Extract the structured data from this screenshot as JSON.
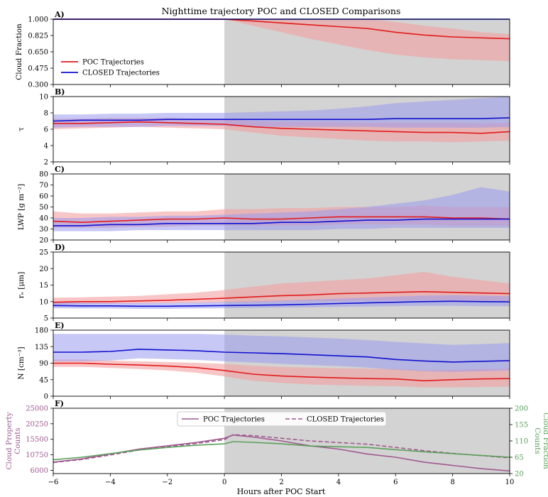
{
  "figure": {
    "title": "Nighttime trajectory POC and CLOSED Comparisons",
    "xlabel": "Hours after POC Start"
  },
  "colors": {
    "poc": "#e31a1c",
    "poc_band": "#f4a0a0",
    "closed": "#1010d0",
    "closed_band": "#9b9bee",
    "shade": "#d3d3d3",
    "prop_counts": "#a05a90",
    "frac_counts": "#5aa05a"
  },
  "legend_top": [
    "POC Trajectories",
    "CLOSED Trajectories"
  ],
  "legend_bottom": [
    "POC Trajectories",
    "CLOSED Trajectories"
  ],
  "chart_data": [
    {
      "type": "line",
      "panel": "A)",
      "ylabel": "Cloud Fraction",
      "ylim": [
        0.3,
        1.0
      ],
      "yticks": [
        "0.300",
        "0.475",
        "0.650",
        "0.825",
        "1.000"
      ],
      "shade_from_x": 0,
      "xlim": [
        -6,
        10
      ],
      "x": [
        -6,
        -5,
        -4,
        -3,
        -2,
        -1,
        0,
        1,
        2,
        3,
        4,
        5,
        6,
        7,
        8,
        9,
        10
      ],
      "series": [
        {
          "name": "POC Trajectories",
          "values": [
            1.0,
            1.0,
            1.0,
            1.0,
            1.0,
            1.0,
            1.0,
            0.98,
            0.96,
            0.94,
            0.92,
            0.9,
            0.86,
            0.83,
            0.81,
            0.8,
            0.79
          ],
          "lower": [
            1.0,
            1.0,
            1.0,
            1.0,
            1.0,
            1.0,
            1.0,
            0.93,
            0.86,
            0.79,
            0.73,
            0.67,
            0.62,
            0.59,
            0.57,
            0.56,
            0.55
          ],
          "upper": [
            1.0,
            1.0,
            1.0,
            1.0,
            1.0,
            1.0,
            1.0,
            1.0,
            1.0,
            1.0,
            1.0,
            1.0,
            0.97,
            0.93,
            0.9,
            0.86,
            0.84
          ]
        },
        {
          "name": "CLOSED Trajectories",
          "values": [
            1.0,
            1.0,
            1.0,
            1.0,
            1.0,
            1.0,
            1.0,
            1.0,
            1.0,
            1.0,
            1.0,
            1.0,
            1.0,
            1.0,
            1.0,
            1.0,
            1.0
          ],
          "lower": [
            0.99,
            0.99,
            0.99,
            0.99,
            0.99,
            0.99,
            0.99,
            0.99,
            0.99,
            0.99,
            0.99,
            0.99,
            0.99,
            0.99,
            0.99,
            0.99,
            0.99
          ],
          "upper": [
            1.0,
            1.0,
            1.0,
            1.0,
            1.0,
            1.0,
            1.0,
            1.0,
            1.0,
            1.0,
            1.0,
            1.0,
            1.0,
            1.0,
            1.0,
            1.0,
            1.0
          ]
        }
      ]
    },
    {
      "type": "line",
      "panel": "B)",
      "ylabel": "τ",
      "ylim": [
        2,
        10
      ],
      "yticks": [
        "2",
        "4",
        "6",
        "8",
        "10"
      ],
      "shade_from_x": 0,
      "xlim": [
        -6,
        10
      ],
      "x": [
        -6,
        -5,
        -4,
        -3,
        -2,
        -1,
        0,
        1,
        2,
        3,
        4,
        5,
        6,
        7,
        8,
        9,
        10
      ],
      "series": [
        {
          "name": "POC Trajectories",
          "values": [
            6.7,
            6.7,
            6.8,
            6.9,
            6.8,
            6.7,
            6.6,
            6.3,
            6.1,
            6.0,
            5.9,
            5.8,
            5.7,
            5.6,
            5.6,
            5.5,
            5.7
          ],
          "lower": [
            6.0,
            6.1,
            6.2,
            6.3,
            6.2,
            6.1,
            6.0,
            5.6,
            5.2,
            5.0,
            4.8,
            4.6,
            4.5,
            4.5,
            4.4,
            4.5,
            4.6
          ],
          "upper": [
            7.3,
            7.3,
            7.4,
            7.4,
            7.4,
            7.3,
            7.3,
            7.0,
            6.9,
            6.9,
            6.9,
            6.8,
            6.8,
            6.8,
            6.8,
            6.7,
            6.8
          ]
        },
        {
          "name": "CLOSED Trajectories",
          "values": [
            7.0,
            7.1,
            7.1,
            7.1,
            7.2,
            7.2,
            7.2,
            7.2,
            7.2,
            7.2,
            7.2,
            7.2,
            7.3,
            7.3,
            7.3,
            7.3,
            7.4
          ],
          "lower": [
            6.2,
            6.3,
            6.3,
            6.3,
            6.4,
            6.4,
            6.4,
            6.3,
            6.3,
            6.3,
            6.3,
            6.3,
            6.2,
            6.2,
            6.2,
            6.2,
            6.3
          ],
          "upper": [
            7.8,
            7.8,
            7.9,
            7.9,
            8.0,
            8.0,
            8.0,
            8.1,
            8.2,
            8.3,
            8.5,
            8.8,
            9.2,
            9.4,
            9.6,
            9.8,
            10.0
          ]
        }
      ]
    },
    {
      "type": "line",
      "panel": "C)",
      "ylabel": "LWP [g m⁻²]",
      "ylim": [
        20,
        80
      ],
      "yticks": [
        "20",
        "30",
        "40",
        "50",
        "60",
        "70",
        "80"
      ],
      "shade_from_x": 0,
      "xlim": [
        -6,
        10
      ],
      "x": [
        -6,
        -5,
        -4,
        -3,
        -2,
        -1,
        0,
        1,
        2,
        3,
        4,
        5,
        6,
        7,
        8,
        9,
        10
      ],
      "series": [
        {
          "name": "POC Trajectories",
          "values": [
            37,
            36,
            37,
            38,
            39,
            39,
            40,
            39,
            39,
            40,
            41,
            41,
            41,
            41,
            40,
            40,
            39
          ],
          "lower": [
            31,
            31,
            31,
            32,
            32,
            33,
            33,
            33,
            33,
            33,
            34,
            34,
            34,
            34,
            33,
            33,
            33
          ],
          "upper": [
            46,
            44,
            44,
            45,
            46,
            46,
            48,
            48,
            49,
            49,
            50,
            50,
            50,
            51,
            50,
            50,
            50
          ]
        },
        {
          "name": "CLOSED Trajectories",
          "values": [
            33,
            33,
            34,
            34,
            35,
            35,
            35,
            35,
            36,
            36,
            37,
            38,
            38,
            39,
            39,
            39,
            39
          ],
          "lower": [
            28,
            28,
            28,
            29,
            29,
            29,
            29,
            29,
            29,
            29,
            30,
            30,
            31,
            31,
            31,
            31,
            31
          ],
          "upper": [
            40,
            40,
            41,
            41,
            42,
            42,
            43,
            44,
            45,
            46,
            48,
            50,
            53,
            56,
            61,
            68,
            64
          ]
        }
      ]
    },
    {
      "type": "line",
      "panel": "D)",
      "ylabel": "rₑ [μm]",
      "ylim": [
        5,
        25
      ],
      "yticks": [
        "5",
        "10",
        "15",
        "20",
        "25"
      ],
      "shade_from_x": 0,
      "xlim": [
        -6,
        10
      ],
      "x": [
        -6,
        -5,
        -4,
        -3,
        -2,
        -1,
        0,
        1,
        2,
        3,
        4,
        5,
        6,
        7,
        8,
        9,
        10
      ],
      "series": [
        {
          "name": "POC Trajectories",
          "values": [
            9.8,
            10.0,
            10.0,
            10.2,
            10.4,
            10.7,
            11.0,
            11.4,
            11.8,
            12.0,
            12.4,
            12.6,
            12.8,
            13.0,
            12.8,
            12.6,
            12.4
          ],
          "lower": [
            9.0,
            9.2,
            9.3,
            9.4,
            9.5,
            9.6,
            9.7,
            9.8,
            10.0,
            10.1,
            10.2,
            10.3,
            10.3,
            10.4,
            10.3,
            10.2,
            10.2
          ],
          "upper": [
            11.2,
            11.3,
            11.5,
            11.7,
            12.2,
            12.7,
            13.5,
            14.5,
            15.5,
            16.0,
            16.5,
            17.0,
            18.0,
            19.0,
            17.5,
            16.5,
            15.5
          ]
        },
        {
          "name": "CLOSED Trajectories",
          "values": [
            8.8,
            8.7,
            8.7,
            8.6,
            8.6,
            8.7,
            8.8,
            8.9,
            9.0,
            9.2,
            9.4,
            9.6,
            9.8,
            10.0,
            10.1,
            10.0,
            9.9
          ],
          "lower": [
            8.0,
            7.9,
            7.9,
            7.8,
            7.8,
            7.9,
            8.0,
            8.1,
            8.2,
            8.3,
            8.4,
            8.5,
            8.6,
            8.7,
            8.7,
            8.6,
            8.6
          ],
          "upper": [
            9.8,
            9.7,
            9.6,
            9.6,
            9.6,
            9.7,
            9.9,
            10.1,
            10.3,
            10.6,
            10.9,
            11.2,
            11.5,
            11.8,
            11.9,
            11.8,
            11.6
          ]
        }
      ]
    },
    {
      "type": "line",
      "panel": "E)",
      "ylabel": "N [cm⁻³]",
      "ylim": [
        0,
        180
      ],
      "yticks": [
        "0",
        "45",
        "90",
        "135",
        "180"
      ],
      "shade_from_x": 0,
      "xlim": [
        -6,
        10
      ],
      "x": [
        -6,
        -5,
        -4,
        -3,
        -2,
        -1,
        0,
        1,
        2,
        3,
        4,
        5,
        6,
        7,
        8,
        9,
        10
      ],
      "series": [
        {
          "name": "POC Trajectories",
          "values": [
            90,
            90,
            87,
            85,
            82,
            78,
            70,
            60,
            55,
            52,
            50,
            48,
            47,
            42,
            45,
            47,
            48
          ],
          "lower": [
            80,
            80,
            77,
            74,
            70,
            64,
            54,
            42,
            36,
            32,
            30,
            28,
            27,
            24,
            24,
            25,
            26
          ],
          "upper": [
            100,
            100,
            97,
            95,
            93,
            91,
            88,
            83,
            80,
            78,
            76,
            75,
            74,
            70,
            72,
            74,
            75
          ]
        },
        {
          "name": "CLOSED Trajectories",
          "values": [
            120,
            120,
            122,
            128,
            126,
            124,
            120,
            118,
            116,
            113,
            110,
            107,
            100,
            96,
            93,
            95,
            97
          ],
          "lower": [
            95,
            95,
            97,
            103,
            101,
            99,
            95,
            92,
            88,
            85,
            82,
            78,
            72,
            68,
            66,
            68,
            70
          ],
          "upper": [
            170,
            170,
            170,
            170,
            170,
            170,
            168,
            165,
            163,
            160,
            157,
            153,
            148,
            144,
            140,
            142,
            145
          ]
        }
      ]
    },
    {
      "type": "line",
      "panel": "F)",
      "ylabel": "Cloud Property Counts",
      "y2label": "Cloud Fraction Counts",
      "ylim": [
        5000,
        25000
      ],
      "yticks": [
        "6000",
        "10750",
        "15500",
        "20250",
        "25000"
      ],
      "y2lim": [
        20,
        200
      ],
      "y2ticks": [
        "20",
        "65",
        "110",
        "155",
        "200"
      ],
      "shade_from_x": 0,
      "xlim": [
        -6,
        10
      ],
      "xticks": [
        "−6",
        "−4",
        "−2",
        "0",
        "2",
        "4",
        "6",
        "8",
        "10"
      ],
      "x": [
        -6,
        -5,
        -4,
        -3,
        -2,
        -1,
        0,
        0.3,
        1,
        2,
        3,
        4,
        5,
        6,
        7,
        8,
        9,
        10
      ],
      "series": [
        {
          "name": "POC Trajectories",
          "axis": "left",
          "style": "solid",
          "values": [
            8500,
            9500,
            11000,
            12500,
            13500,
            14500,
            15800,
            16800,
            16200,
            15000,
            13500,
            12500,
            11000,
            10000,
            8500,
            7500,
            6500,
            5800
          ]
        },
        {
          "name": "CLOSED Trajectories",
          "axis": "left",
          "style": "dashed",
          "values": [
            8400,
            9300,
            10700,
            12200,
            13200,
            14200,
            15400,
            16900,
            16600,
            15800,
            15000,
            14500,
            14000,
            13000,
            12000,
            11200,
            10500,
            9800
          ]
        },
        {
          "name": "",
          "axis": "right",
          "style": "solid",
          "values": [
            58,
            65,
            75,
            85,
            92,
            98,
            102,
            108,
            106,
            102,
            96,
            94,
            92,
            86,
            80,
            75,
            70,
            65
          ]
        }
      ]
    }
  ]
}
